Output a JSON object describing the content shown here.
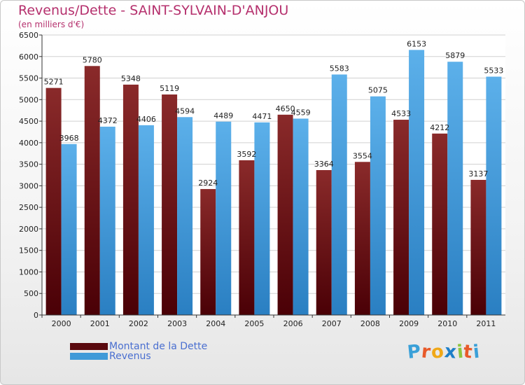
{
  "header": {
    "title": "Revenus/Dette - SAINT-SYLVAIN-D'ANJOU",
    "subtitle": "(en milliers d'€)"
  },
  "legend": {
    "dette_label": "Montant de la Dette",
    "revenus_label": "Revenus"
  },
  "logo": {
    "text": "Proxiti",
    "letters": [
      "P",
      "r",
      "o",
      "x",
      "i",
      "t",
      "i"
    ],
    "letter_colors": [
      "#3aa0d8",
      "#e85a2a",
      "#f0a818",
      "#1e7fc8",
      "#8dc63f",
      "#e85a2a",
      "#3aa0d8"
    ]
  },
  "colors": {
    "dette": "#6a0f12",
    "revenus": "#3f9ad8",
    "title": "#b5306d"
  },
  "chart_data": {
    "type": "bar",
    "title": "Revenus/Dette - SAINT-SYLVAIN-D'ANJOU",
    "subtitle": "(en milliers d'€)",
    "xlabel": "",
    "ylabel": "",
    "ylim": [
      0,
      6500
    ],
    "yticks": [
      0,
      500,
      1000,
      1500,
      2000,
      2500,
      3000,
      3500,
      4000,
      4500,
      5000,
      5500,
      6000,
      6500
    ],
    "grid": true,
    "legend_position": "bottom-left",
    "categories": [
      "2000",
      "2001",
      "2002",
      "2003",
      "2004",
      "2005",
      "2006",
      "2007",
      "2008",
      "2009",
      "2010",
      "2011"
    ],
    "series": [
      {
        "name": "Montant de la Dette",
        "values": [
          5271,
          5780,
          5348,
          5119,
          2924,
          3592,
          4650,
          3364,
          3554,
          4533,
          4212,
          3137
        ]
      },
      {
        "name": "Revenus",
        "values": [
          3968,
          4372,
          4406,
          4594,
          4489,
          4471,
          4559,
          5583,
          5075,
          6153,
          5879,
          5533
        ]
      }
    ]
  }
}
